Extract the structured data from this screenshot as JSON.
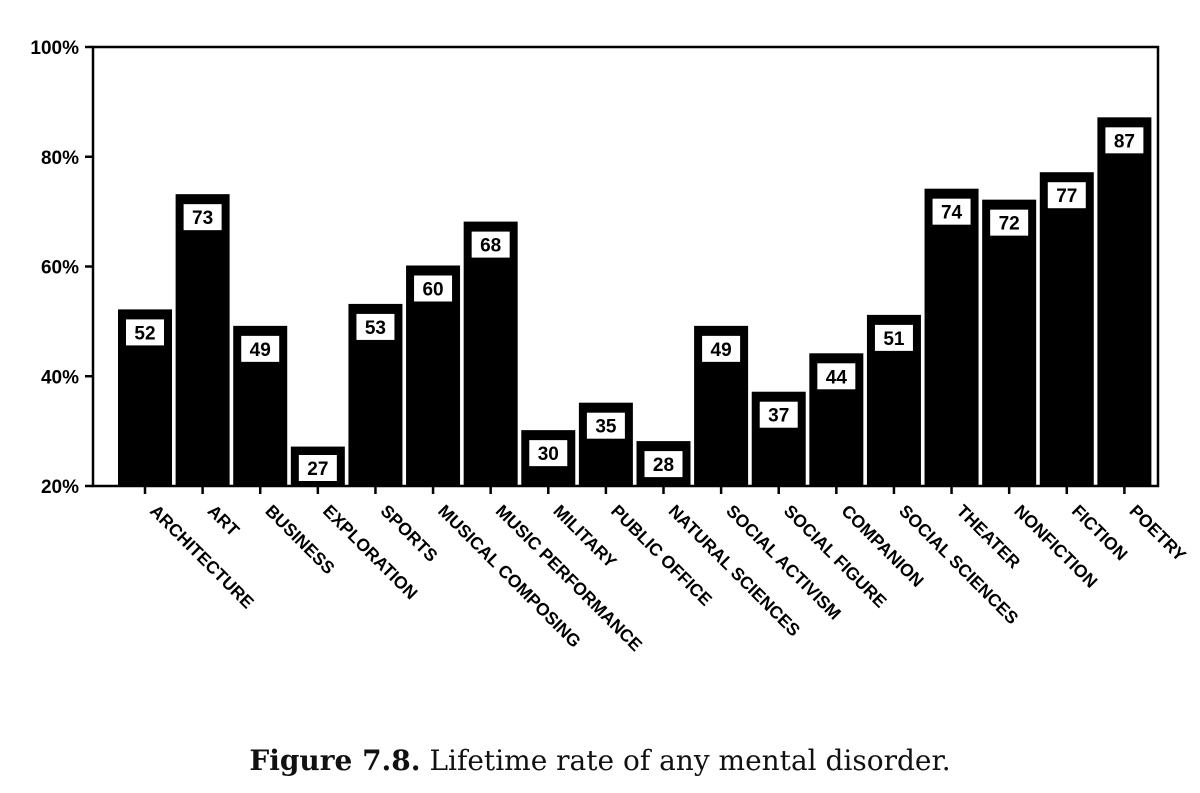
{
  "caption": {
    "figure_label": "Figure 7.8.",
    "text": "Lifetime rate of any mental disorder."
  },
  "chart_data": {
    "type": "bar",
    "categories": [
      "ARCHITECTURE",
      "ART",
      "BUSINESS",
      "EXPLORATION",
      "SPORTS",
      "MUSICAL COMPOSING",
      "MUSIC PERFORMANCE",
      "MILITARY",
      "PUBLIC OFFICE",
      "NATURAL SCIENCES",
      "SOCIAL ACTIVISM",
      "SOCIAL FIGURE",
      "COMPANION",
      "SOCIAL SCIENCES",
      "THEATER",
      "NONFICTION",
      "FICTION",
      "POETRY"
    ],
    "values": [
      52,
      73,
      49,
      27,
      53,
      60,
      68,
      30,
      35,
      28,
      49,
      37,
      44,
      51,
      74,
      72,
      77,
      87
    ],
    "data_labels": [
      "52",
      "73",
      "49",
      "27",
      "53",
      "60",
      "68",
      "30",
      "35",
      "28",
      "49",
      "37",
      "44",
      "51",
      "74",
      "72",
      "77",
      "87"
    ],
    "ylim": [
      20,
      100
    ],
    "yticks": [
      20,
      40,
      60,
      80,
      100
    ],
    "ytick_labels": [
      "20%",
      "40%",
      "60%",
      "80%",
      "100%"
    ],
    "bar_color": "#000000",
    "grid": false
  }
}
